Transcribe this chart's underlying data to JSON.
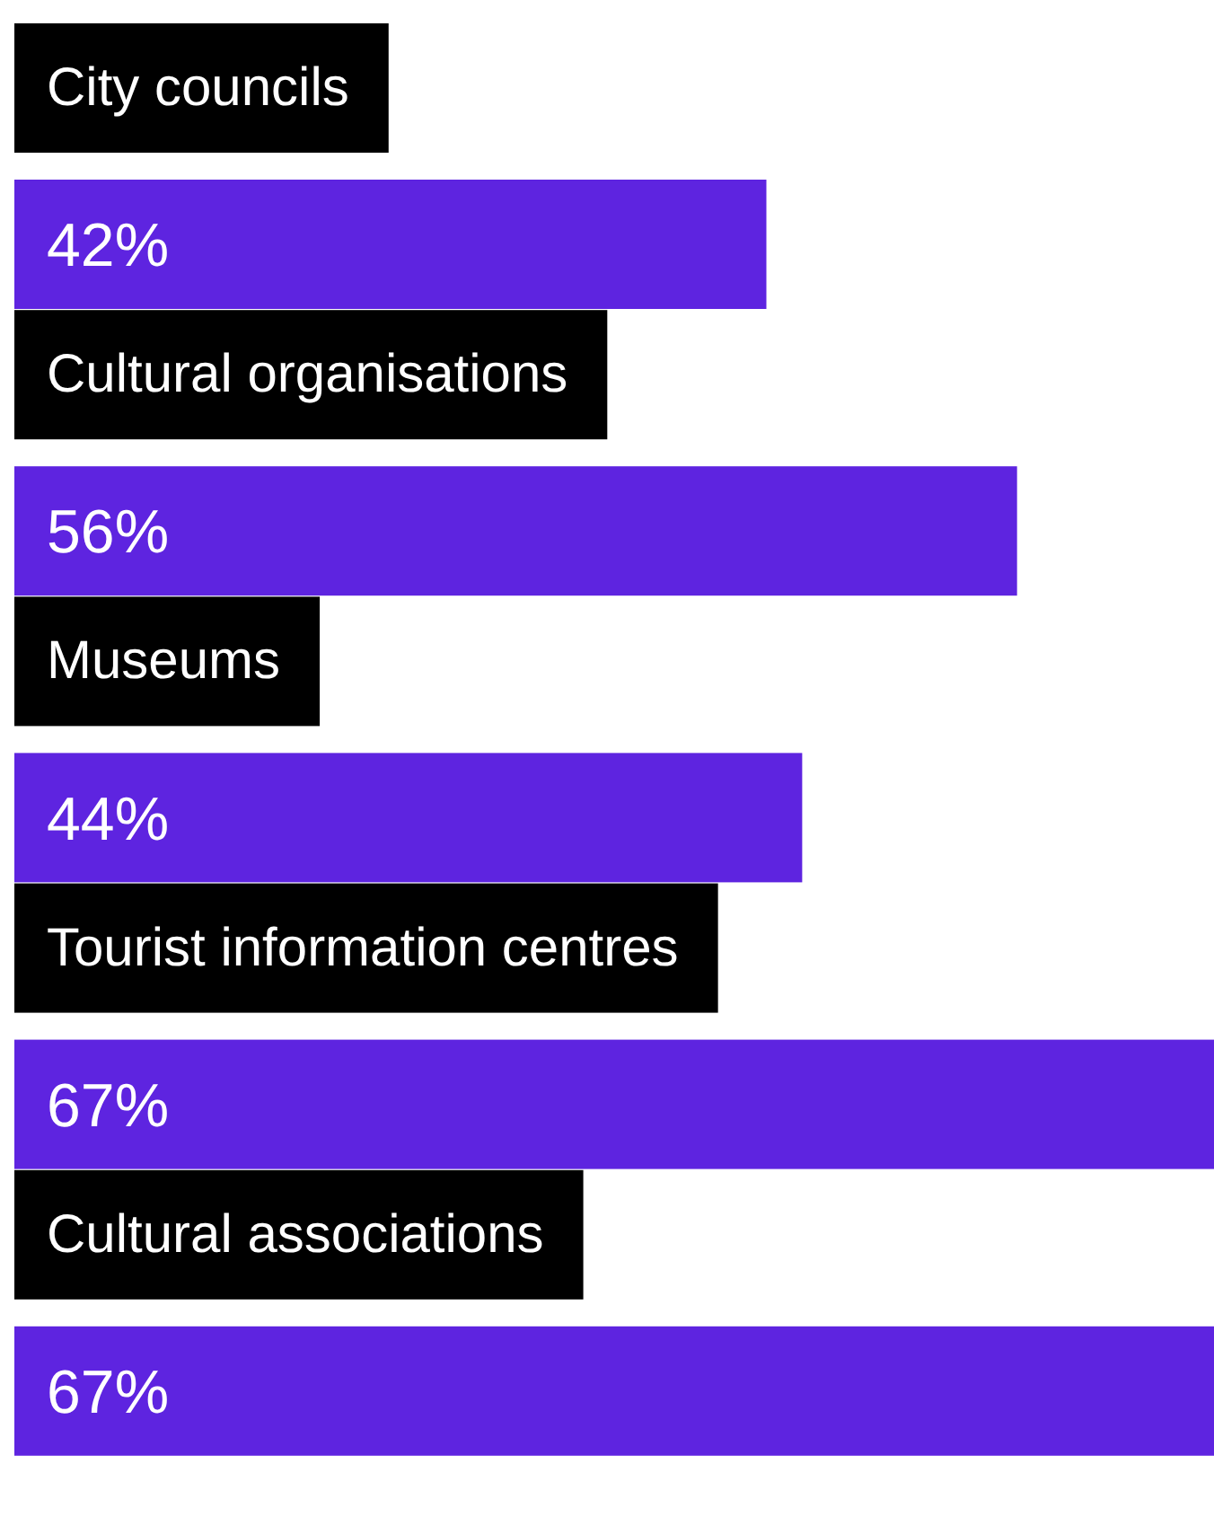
{
  "chart_data": {
    "type": "bar",
    "orientation": "horizontal",
    "categories": [
      "City councils",
      "Cultural organisations",
      "Museums",
      "Tourist information centres",
      "Cultural associations"
    ],
    "values": [
      42,
      56,
      44,
      67,
      67
    ],
    "value_labels": [
      "42%",
      "56%",
      "44%",
      "67%",
      "67%"
    ],
    "color": "#5e24e0",
    "xlim": [
      0,
      67
    ],
    "grid": false,
    "legend": false
  }
}
